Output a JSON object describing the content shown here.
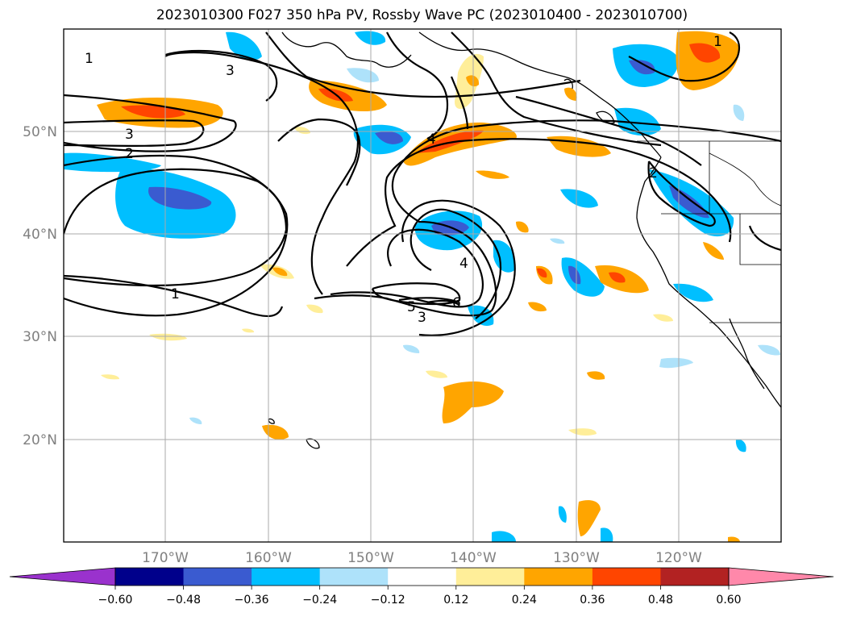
{
  "title": "2023010300 F027 350 hPa PV, Rossby Wave PC (2023010400 - 2023010700)",
  "map": {
    "lat_labels": [
      "50°N",
      "40°N",
      "30°N",
      "20°N"
    ],
    "lon_labels": [
      "170°W",
      "160°W",
      "150°W",
      "140°W",
      "130°W",
      "120°W"
    ],
    "grid": true
  },
  "colorbar": {
    "ticks": [
      "−0.60",
      "−0.48",
      "−0.36",
      "−0.24",
      "−0.12",
      "0.12",
      "0.24",
      "0.36",
      "0.48",
      "0.60"
    ],
    "colors": [
      "#9a32cd",
      "#00008b",
      "#3a5bd0",
      "#00bfff",
      "#aee2fa",
      "#ffffff",
      "#ffee99",
      "#ffa500",
      "#ff4500",
      "#b22222",
      "#ff88aa"
    ]
  },
  "contour_labels": [
    "1",
    "3",
    "3",
    "2",
    "1",
    "4",
    "4",
    "5",
    "3",
    "6",
    "1",
    "2"
  ],
  "colors": {
    "positive_light": "#ffee99",
    "positive_mid": "#ffa500",
    "positive_high": "#ff4500",
    "negative_light": "#aee2fa",
    "negative_mid": "#00bfff",
    "negative_high": "#3a5bd0",
    "contour": "#000000",
    "grid": "#aaaaaa"
  }
}
